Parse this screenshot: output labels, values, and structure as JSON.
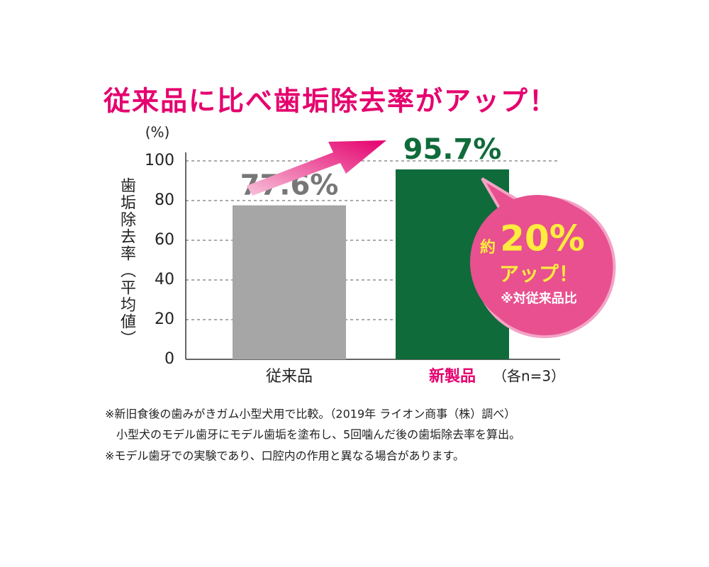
{
  "chart_data": {
    "type": "bar",
    "title": "従来品に比べ歯垢除去率がアップ！",
    "y_unit": "(%)",
    "y_label": "歯垢除去率（平均値）",
    "categories": [
      "従来品",
      "新製品"
    ],
    "category_colors": [
      "#222222",
      "#e5006e"
    ],
    "values": [
      77.6,
      95.7
    ],
    "value_labels": [
      "77.6%",
      "95.7%"
    ],
    "colors": [
      "#a6a6a6",
      "#0f6b3a"
    ],
    "value_label_colors": [
      "#777777",
      "#0f6b3a"
    ],
    "ylim": [
      0,
      100
    ],
    "yticks": [
      0,
      20,
      40,
      60,
      80,
      100
    ],
    "grid": true,
    "sample_note": "（各n=3）",
    "callout": {
      "prefix": "約",
      "headline": "20%",
      "text": "アップ！",
      "note": "※対従来品比"
    },
    "footnotes": [
      "※新旧食後の歯みがきガム小型犬用で比較。（2019年 ライオン商事（株）調べ）",
      "小型犬のモデル歯牙にモデル歯垢を塗布し、5回噛んだ後の歯垢除去率を算出。",
      "※モデル歯牙での実験であり、口腔内の作用と異なる場合があります。"
    ]
  }
}
